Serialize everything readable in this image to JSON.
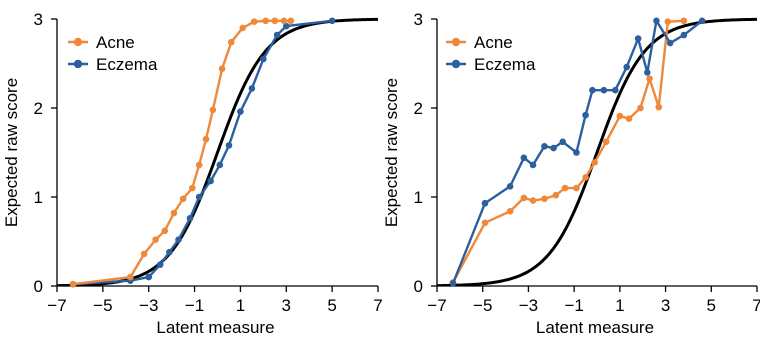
{
  "chart_data": [
    {
      "type": "line",
      "title": "",
      "xlabel": "Latent measure",
      "ylabel": "Expected raw score",
      "xlim": [
        -7,
        7
      ],
      "ylim": [
        0,
        3
      ],
      "xticks": [
        "-7",
        "-5",
        "-3",
        "-1",
        "1",
        "3",
        "5",
        "7"
      ],
      "yticks": [
        "0",
        "1",
        "2",
        "3"
      ],
      "legend": "top-left",
      "grid": false,
      "curve_color": "#000000",
      "series": [
        {
          "name": "Acne",
          "color": "#f0883a",
          "x": [
            -6.3,
            -3.8,
            -3.2,
            -2.7,
            -2.3,
            -1.9,
            -1.5,
            -1.1,
            -0.8,
            -0.5,
            -0.2,
            0.2,
            0.6,
            1.1,
            1.6,
            2.1,
            2.5,
            2.9,
            3.2
          ],
          "y": [
            0.02,
            0.1,
            0.36,
            0.52,
            0.62,
            0.82,
            0.98,
            1.1,
            1.36,
            1.65,
            1.98,
            2.44,
            2.74,
            2.9,
            2.97,
            2.98,
            2.98,
            2.98,
            2.98
          ]
        },
        {
          "name": "Eczema",
          "color": "#2b5f9e",
          "x": [
            -6.3,
            -3.8,
            -3.0,
            -2.5,
            -2.1,
            -1.7,
            -1.2,
            -0.8,
            -0.3,
            0.1,
            0.5,
            1.0,
            1.5,
            2.0,
            2.6,
            3.0,
            5.0
          ],
          "y": [
            0.02,
            0.06,
            0.1,
            0.24,
            0.38,
            0.52,
            0.76,
            1.0,
            1.18,
            1.36,
            1.58,
            1.96,
            2.22,
            2.55,
            2.82,
            2.92,
            2.98
          ]
        }
      ]
    },
    {
      "type": "line",
      "title": "",
      "xlabel": "Latent measure",
      "ylabel": "Expected raw score",
      "xlim": [
        -7,
        7
      ],
      "ylim": [
        0,
        3
      ],
      "xticks": [
        "-7",
        "-5",
        "-3",
        "-1",
        "1",
        "3",
        "5",
        "7"
      ],
      "yticks": [
        "0",
        "1",
        "2",
        "3"
      ],
      "legend": "top-center",
      "grid": false,
      "curve_color": "#000000",
      "series": [
        {
          "name": "Acne",
          "color": "#f0883a",
          "x": [
            -6.3,
            -4.9,
            -3.8,
            -3.2,
            -2.8,
            -2.3,
            -1.8,
            -1.4,
            -0.9,
            -0.5,
            -0.1,
            0.4,
            1.0,
            1.4,
            1.9,
            2.3,
            2.7,
            3.1,
            3.8
          ],
          "y": [
            0.04,
            0.71,
            0.84,
            0.99,
            0.96,
            0.98,
            1.02,
            1.1,
            1.1,
            1.22,
            1.39,
            1.62,
            1.91,
            1.88,
            2.0,
            2.33,
            2.01,
            2.97,
            2.98
          ]
        },
        {
          "name": "Eczema",
          "color": "#2b5f9e",
          "x": [
            -6.3,
            -4.9,
            -3.8,
            -3.2,
            -2.8,
            -2.3,
            -1.9,
            -1.5,
            -0.9,
            -0.5,
            -0.2,
            0.3,
            0.8,
            1.3,
            1.8,
            2.2,
            2.6,
            3.2,
            3.8,
            4.6
          ],
          "y": [
            0.03,
            0.93,
            1.12,
            1.44,
            1.36,
            1.57,
            1.55,
            1.62,
            1.5,
            1.92,
            2.2,
            2.2,
            2.2,
            2.46,
            2.78,
            2.4,
            2.98,
            2.73,
            2.82,
            2.98
          ]
        }
      ]
    }
  ]
}
